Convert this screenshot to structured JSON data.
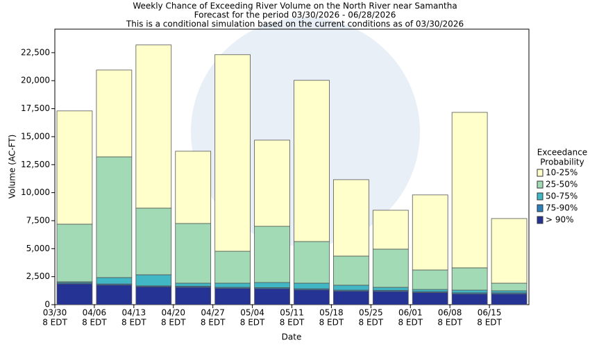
{
  "chart_data": {
    "type": "stacked_bar",
    "title": "Weekly Chance of Exceeding River Volume on the North River near Samantha",
    "subtitle": "Forecast for the period 03/30/2026 - 06/28/2026",
    "note": "This is a conditional simulation based on the current conditions as of 03/30/2026",
    "x_label": "Date",
    "y_label": "Volume (AC-FT)",
    "categories": [
      "03/30",
      "04/06",
      "04/13",
      "04/20",
      "04/27",
      "05/04",
      "05/11",
      "05/18",
      "05/25",
      "06/01",
      "06/08",
      "06/15"
    ],
    "category_time": "8 EDT",
    "legend_title": [
      "Exceedance",
      "Probability"
    ],
    "legend_position": "right",
    "ylim": [
      0,
      24600
    ],
    "yticks": [
      0,
      {
        "value": 2500,
        "label": "2,500"
      },
      {
        "value": 5000,
        "label": "5,000"
      },
      {
        "value": 7500,
        "label": "7,500"
      },
      {
        "value": 10000,
        "label": "10,000"
      },
      {
        "value": 12500,
        "label": "12,500"
      },
      {
        "value": 15000,
        "label": "15,000"
      },
      {
        "value": 17500,
        "label": "17,500"
      },
      {
        "value": 20000,
        "label": "20,000"
      },
      {
        "value": 22500,
        "label": "22,500"
      }
    ],
    "series": [
      {
        "name": "> 90%",
        "color": "#253494",
        "values": [
          1850,
          1750,
          1600,
          1550,
          1450,
          1420,
          1320,
          1200,
          1180,
          1080,
          950,
          950
        ]
      },
      {
        "name": "75-90%",
        "color": "#2c7fb8",
        "values": [
          100,
          100,
          80,
          100,
          100,
          100,
          100,
          100,
          100,
          90,
          110,
          110
        ]
      },
      {
        "name": "50-75%",
        "color": "#41b6c4",
        "values": [
          100,
          570,
          990,
          270,
          370,
          460,
          500,
          440,
          270,
          190,
          240,
          180
        ]
      },
      {
        "name": "25-50%",
        "color": "#a1dab4",
        "values": [
          5140,
          10780,
          5950,
          5330,
          2850,
          5020,
          3720,
          2600,
          3410,
          1740,
          1990,
          680
        ]
      },
      {
        "name": "10-25%",
        "color": "#ffffcc",
        "values": [
          10110,
          7750,
          14570,
          6450,
          17550,
          7690,
          14390,
          6820,
          3470,
          6700,
          13880,
          5770
        ]
      }
    ]
  }
}
